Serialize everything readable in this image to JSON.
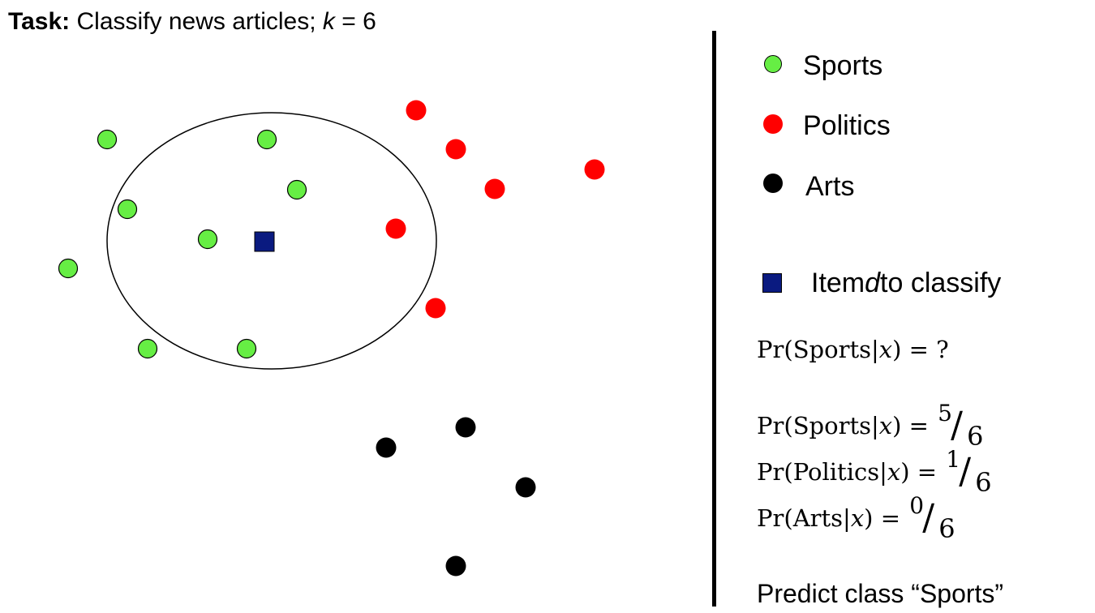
{
  "title": {
    "task_label": "Task:",
    "task_text": " Classify news articles; ",
    "k_symbol": "k",
    "k_rest": " = 6"
  },
  "colors": {
    "sports": "#66ee44",
    "politics": "#ff0000",
    "arts": "#000000",
    "query": "#0a1a80"
  },
  "legend": {
    "sports": "Sports",
    "politics": "Politics",
    "arts": "Arts",
    "query_pre": "Item ",
    "query_var": "d",
    "query_post": " to classify"
  },
  "formulas": {
    "question_prefix": "Pr(Sports|",
    "question_var": "x",
    "question_suffix": ") = ?",
    "sports_prefix": "Pr(Sports|",
    "sports_var": "x",
    "sports_suffix": ") = ",
    "sports_num": "5",
    "sports_den": "6",
    "politics_prefix": "Pr(Politics|",
    "politics_var": "x",
    "politics_suffix": ") = ",
    "politics_num": "1",
    "politics_den": "6",
    "arts_prefix": "Pr(Arts|",
    "arts_var": "x",
    "arts_suffix": ") = ",
    "arts_num": "0",
    "arts_den": "6"
  },
  "prediction": "Predict class “Sports”"
}
